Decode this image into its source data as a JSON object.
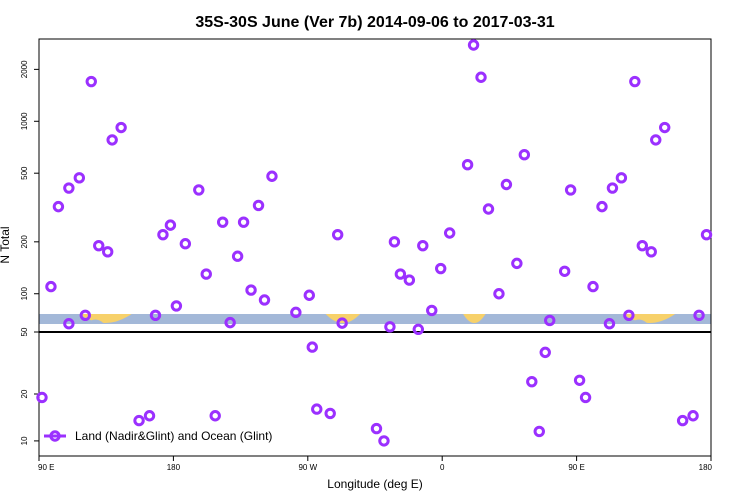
{
  "chart_data": {
    "type": "scatter",
    "title": "35S-30S June (Ver 7b)   2014-09-06 to 2017-03-31",
    "xlabel": "Longitude (deg E)",
    "ylabel": "N Total",
    "y_scale": "log",
    "upper_panel_ylim": [
      60,
      3000
    ],
    "lower_panel_ylim": [
      8,
      50
    ],
    "x_range": [
      90,
      540
    ],
    "x_ticks": [
      {
        "value": 90,
        "label": "90 E"
      },
      {
        "value": 180,
        "label": "180"
      },
      {
        "value": 270,
        "label": "90 W"
      },
      {
        "value": 360,
        "label": "0"
      },
      {
        "value": 450,
        "label": "90 E"
      },
      {
        "value": 540,
        "label": "180"
      }
    ],
    "upper_y_ticks": [
      {
        "value": 100,
        "label": "100"
      },
      {
        "value": 200,
        "label": "200"
      },
      {
        "value": 500,
        "label": "500"
      },
      {
        "value": 1000,
        "label": "1000"
      },
      {
        "value": 2000,
        "label": "2000"
      }
    ],
    "lower_y_ticks": [
      {
        "value": 10,
        "label": "10"
      },
      {
        "value": 20,
        "label": "20"
      },
      {
        "value": 50,
        "label": "50"
      }
    ],
    "legend": {
      "label": "Land (Nadir&Glint) and Ocean (Glint)",
      "position": "bottom-left"
    },
    "series": [
      {
        "name": "Land (Nadir&Glint) and Ocean (Glint)",
        "color": "#9b30ff",
        "points": [
          [
            92,
            19
          ],
          [
            98,
            110
          ],
          [
            103,
            320
          ],
          [
            110,
            67
          ],
          [
            110,
            410
          ],
          [
            117,
            470
          ],
          [
            121,
            75
          ],
          [
            125,
            1700
          ],
          [
            130,
            190
          ],
          [
            136,
            175
          ],
          [
            139,
            780
          ],
          [
            145,
            920
          ],
          [
            157,
            13.5
          ],
          [
            164,
            14.5
          ],
          [
            168,
            75
          ],
          [
            173,
            220
          ],
          [
            178,
            250
          ],
          [
            182,
            85
          ],
          [
            188,
            195
          ],
          [
            197,
            400
          ],
          [
            202,
            130
          ],
          [
            208,
            14.5
          ],
          [
            213,
            260
          ],
          [
            218,
            68
          ],
          [
            223,
            165
          ],
          [
            227,
            260
          ],
          [
            232,
            105
          ],
          [
            237,
            325
          ],
          [
            241,
            92
          ],
          [
            246,
            480
          ],
          [
            262,
            78
          ],
          [
            271,
            98
          ],
          [
            273,
            40
          ],
          [
            276,
            16
          ],
          [
            285,
            15
          ],
          [
            290,
            220
          ],
          [
            293,
            57
          ],
          [
            316,
            12
          ],
          [
            321,
            10
          ],
          [
            325,
            54
          ],
          [
            328,
            200
          ],
          [
            332,
            130
          ],
          [
            338,
            120
          ],
          [
            344,
            52
          ],
          [
            347,
            190
          ],
          [
            353,
            80
          ],
          [
            359,
            140
          ],
          [
            365,
            225
          ],
          [
            377,
            560
          ],
          [
            381,
            3200
          ],
          [
            386,
            1800
          ],
          [
            391,
            310
          ],
          [
            398,
            100
          ],
          [
            403,
            430
          ],
          [
            410,
            150
          ],
          [
            415,
            640
          ],
          [
            420,
            24
          ],
          [
            425,
            11.5
          ],
          [
            429,
            37
          ],
          [
            432,
            70
          ],
          [
            442,
            135
          ],
          [
            446,
            400
          ],
          [
            452,
            24.5
          ],
          [
            456,
            19
          ],
          [
            461,
            110
          ],
          [
            467,
            320
          ],
          [
            472,
            67
          ],
          [
            474,
            410
          ],
          [
            480,
            470
          ],
          [
            485,
            75
          ],
          [
            489,
            1700
          ],
          [
            494,
            190
          ],
          [
            500,
            175
          ],
          [
            503,
            780
          ],
          [
            509,
            920
          ],
          [
            521,
            13.5
          ],
          [
            528,
            14.5
          ],
          [
            532,
            75
          ],
          [
            537,
            220
          ],
          [
            542,
            250
          ]
        ]
      }
    ],
    "land_mask_bands": [
      [
        117,
        152
      ],
      [
        282,
        305
      ],
      [
        374,
        389
      ],
      [
        481,
        516
      ]
    ]
  }
}
